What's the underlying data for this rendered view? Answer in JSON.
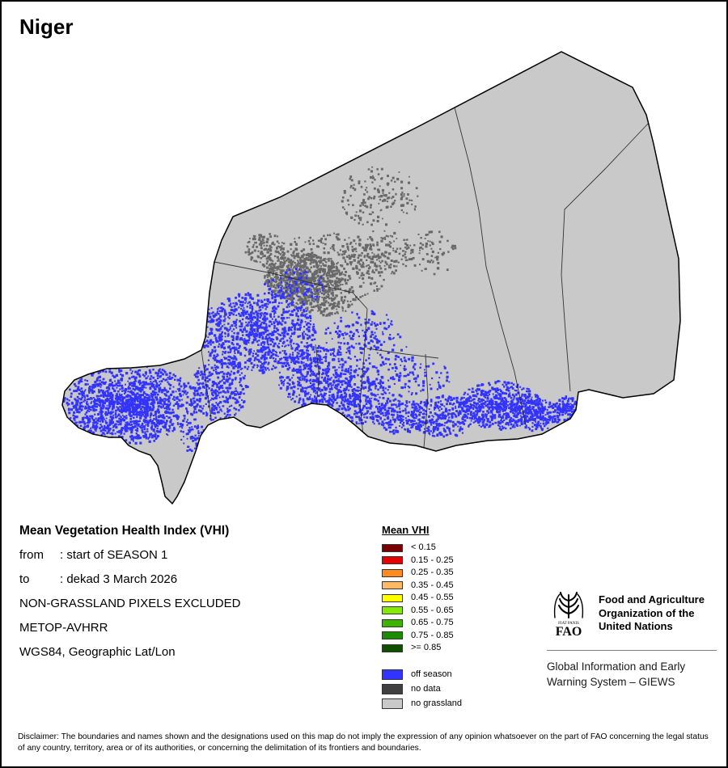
{
  "title": "Niger",
  "info": {
    "heading": "Mean Vegetation Health Index (VHI)",
    "from_label": "from",
    "from_value": ": start of SEASON 1",
    "to_label": "to",
    "to_value": ": dekad 3 March 2026",
    "exclusion": "NON-GRASSLAND PIXELS EXCLUDED",
    "sensor": "METOP-AVHRR",
    "projection": "WGS84, Geographic Lat/Lon"
  },
  "legend": {
    "title": "Mean VHI",
    "classes": [
      {
        "label": "< 0.15",
        "color": "#780000"
      },
      {
        "label": "0.15 - 0.25",
        "color": "#e60000"
      },
      {
        "label": "0.25 - 0.35",
        "color": "#ff8a1e"
      },
      {
        "label": "0.35 - 0.45",
        "color": "#ffb964"
      },
      {
        "label": "0.45 - 0.55",
        "color": "#ffff00"
      },
      {
        "label": "0.55 - 0.65",
        "color": "#87e800"
      },
      {
        "label": "0.65 - 0.75",
        "color": "#3cb400"
      },
      {
        "label": "0.75 - 0.85",
        "color": "#1e8c00"
      },
      {
        "label": ">= 0.85",
        "color": "#0e5000"
      }
    ],
    "extra_classes": [
      {
        "label": "off season",
        "color": "#3333ff"
      },
      {
        "label": "no data",
        "color": "#404040"
      },
      {
        "label": "no grassland",
        "color": "#c9c9c9"
      }
    ]
  },
  "map": {
    "country": "Niger",
    "border_color": "#000000"
  },
  "fao": {
    "acronym": "FAO",
    "motto": "FIAT PANIS",
    "org_name": "Food and Agriculture Organization of the United Nations",
    "giews": "Global Information and Early Warning System – GIEWS"
  },
  "disclaimer": "Disclaimer: The boundaries and names shown and the designations used on this map do not imply the expression of any opinion whatsoever on the part of FAO concerning the legal status of any country, territory, area or of its authorities, or concerning the delimitation of its frontiers and boundaries."
}
